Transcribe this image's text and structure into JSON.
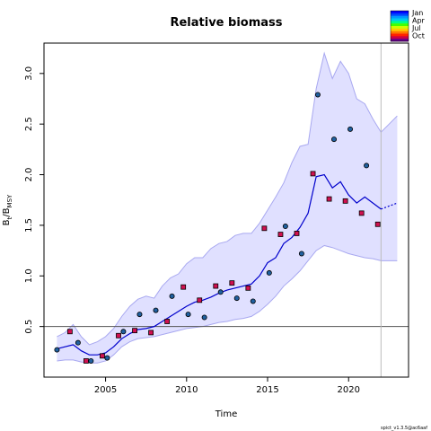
{
  "chart_data": {
    "type": "line",
    "title": "Relative biomass",
    "xlabel": "Time",
    "ylabel_main": "B",
    "ylabel_sub1": "t",
    "ylabel_sep": "/B",
    "ylabel_sub2": "MSY",
    "xlim": [
      2001.2,
      2023.7
    ],
    "ylim": [
      0.0,
      3.3
    ],
    "x_ticks": [
      {
        "value": 2005,
        "label": "2005"
      },
      {
        "value": 2010,
        "label": "2010"
      },
      {
        "value": 2015,
        "label": "2015"
      },
      {
        "value": 2020,
        "label": "2020"
      }
    ],
    "y_ticks": [
      {
        "value": 0.5,
        "label": "0.5"
      },
      {
        "value": 1.0,
        "label": "1.0"
      },
      {
        "value": 1.5,
        "label": "1.5"
      },
      {
        "value": 2.0,
        "label": "2.0"
      },
      {
        "value": 2.5,
        "label": "2.5"
      },
      {
        "value": 3.0,
        "label": "3.0"
      }
    ],
    "reference_line_y": 0.5,
    "vertical_line_x": 22,
    "vertical_line_x_value": 2022.0,
    "confidence_band": {
      "color": "#e0e0ff",
      "edge_color": "#a8a8f0",
      "x": [
        2002.0,
        2002.5,
        2003.0,
        2003.5,
        2004.0,
        2004.5,
        2005.0,
        2005.5,
        2006.0,
        2006.5,
        2007.0,
        2007.5,
        2008.0,
        2008.5,
        2009.0,
        2009.5,
        2010.0,
        2010.5,
        2011.0,
        2011.5,
        2012.0,
        2012.5,
        2013.0,
        2013.5,
        2014.0,
        2014.5,
        2015.0,
        2015.5,
        2016.0,
        2016.5,
        2017.0,
        2017.5,
        2018.0,
        2018.5,
        2019.0,
        2019.5,
        2020.0,
        2020.5,
        2021.0,
        2021.5,
        2022.0,
        2022.5,
        2023.0
      ],
      "upper": [
        0.4,
        0.44,
        0.52,
        0.4,
        0.32,
        0.35,
        0.4,
        0.48,
        0.6,
        0.7,
        0.77,
        0.8,
        0.78,
        0.9,
        0.98,
        1.02,
        1.12,
        1.18,
        1.18,
        1.27,
        1.32,
        1.34,
        1.4,
        1.42,
        1.42,
        1.52,
        1.65,
        1.78,
        1.92,
        2.12,
        2.28,
        2.3,
        2.85,
        3.2,
        2.95,
        3.12,
        3.0,
        2.75,
        2.7,
        2.55,
        2.42,
        2.5,
        2.58
      ],
      "lower": [
        0.16,
        0.17,
        0.17,
        0.15,
        0.14,
        0.14,
        0.16,
        0.22,
        0.3,
        0.35,
        0.38,
        0.39,
        0.4,
        0.42,
        0.44,
        0.46,
        0.48,
        0.49,
        0.5,
        0.52,
        0.54,
        0.55,
        0.57,
        0.58,
        0.6,
        0.65,
        0.72,
        0.8,
        0.9,
        0.97,
        1.05,
        1.15,
        1.25,
        1.3,
        1.28,
        1.25,
        1.22,
        1.2,
        1.18,
        1.17,
        1.15,
        1.15,
        1.15
      ]
    },
    "estimate_line": {
      "color": "#0000cc",
      "x": [
        2002.0,
        2002.5,
        2003.0,
        2003.5,
        2004.0,
        2004.5,
        2005.0,
        2005.5,
        2006.0,
        2006.5,
        2007.0,
        2007.5,
        2008.0,
        2008.5,
        2009.0,
        2009.5,
        2010.0,
        2010.5,
        2011.0,
        2011.5,
        2012.0,
        2012.5,
        2013.0,
        2013.5,
        2014.0,
        2014.5,
        2015.0,
        2015.5,
        2016.0,
        2016.5,
        2017.0,
        2017.5,
        2018.0,
        2018.5,
        2019.0,
        2019.5,
        2020.0,
        2020.5,
        2021.0,
        2021.5,
        2022.0
      ],
      "y": [
        0.28,
        0.3,
        0.32,
        0.26,
        0.22,
        0.22,
        0.24,
        0.3,
        0.38,
        0.43,
        0.47,
        0.48,
        0.5,
        0.55,
        0.6,
        0.65,
        0.7,
        0.74,
        0.76,
        0.79,
        0.83,
        0.86,
        0.88,
        0.9,
        0.92,
        1.0,
        1.13,
        1.18,
        1.32,
        1.38,
        1.48,
        1.62,
        1.98,
        2.0,
        1.87,
        1.93,
        1.8,
        1.72,
        1.78,
        1.72,
        1.66
      ]
    },
    "forecast_line": {
      "style": "dotted",
      "x": [
        2022.0,
        2022.5,
        2023.0
      ],
      "y": [
        1.66,
        1.69,
        1.72
      ]
    },
    "observations": [
      {
        "x": 2002.0,
        "y": 0.27,
        "marker": "circle",
        "color": "#2060a0"
      },
      {
        "x": 2002.8,
        "y": 0.45,
        "marker": "square",
        "color": "#d01050"
      },
      {
        "x": 2003.3,
        "y": 0.34,
        "marker": "circle",
        "color": "#2060a0"
      },
      {
        "x": 2003.8,
        "y": 0.16,
        "marker": "square",
        "color": "#d01050"
      },
      {
        "x": 2004.1,
        "y": 0.16,
        "marker": "circle",
        "color": "#2060a0"
      },
      {
        "x": 2004.8,
        "y": 0.21,
        "marker": "square",
        "color": "#d01050"
      },
      {
        "x": 2005.1,
        "y": 0.19,
        "marker": "circle",
        "color": "#2060a0"
      },
      {
        "x": 2005.8,
        "y": 0.41,
        "marker": "square",
        "color": "#d01050"
      },
      {
        "x": 2006.1,
        "y": 0.45,
        "marker": "circle",
        "color": "#2060a0"
      },
      {
        "x": 2006.8,
        "y": 0.46,
        "marker": "square",
        "color": "#d01050"
      },
      {
        "x": 2007.1,
        "y": 0.62,
        "marker": "circle",
        "color": "#2060a0"
      },
      {
        "x": 2007.8,
        "y": 0.44,
        "marker": "square",
        "color": "#d01050"
      },
      {
        "x": 2008.1,
        "y": 0.66,
        "marker": "circle",
        "color": "#2060a0"
      },
      {
        "x": 2008.8,
        "y": 0.55,
        "marker": "square",
        "color": "#d01050"
      },
      {
        "x": 2009.1,
        "y": 0.8,
        "marker": "circle",
        "color": "#2060a0"
      },
      {
        "x": 2009.8,
        "y": 0.89,
        "marker": "square",
        "color": "#d01050"
      },
      {
        "x": 2010.1,
        "y": 0.62,
        "marker": "circle",
        "color": "#2060a0"
      },
      {
        "x": 2010.8,
        "y": 0.76,
        "marker": "square",
        "color": "#d01050"
      },
      {
        "x": 2011.1,
        "y": 0.59,
        "marker": "circle",
        "color": "#2060a0"
      },
      {
        "x": 2011.8,
        "y": 0.9,
        "marker": "square",
        "color": "#d01050"
      },
      {
        "x": 2012.1,
        "y": 0.84,
        "marker": "circle",
        "color": "#2060a0"
      },
      {
        "x": 2012.8,
        "y": 0.93,
        "marker": "square",
        "color": "#d01050"
      },
      {
        "x": 2013.1,
        "y": 0.78,
        "marker": "circle",
        "color": "#2060a0"
      },
      {
        "x": 2013.8,
        "y": 0.88,
        "marker": "square",
        "color": "#d01050"
      },
      {
        "x": 2014.1,
        "y": 0.75,
        "marker": "circle",
        "color": "#2060a0"
      },
      {
        "x": 2014.8,
        "y": 1.47,
        "marker": "square",
        "color": "#d01050"
      },
      {
        "x": 2015.1,
        "y": 1.03,
        "marker": "circle",
        "color": "#2060a0"
      },
      {
        "x": 2015.8,
        "y": 1.41,
        "marker": "square",
        "color": "#d01050"
      },
      {
        "x": 2016.1,
        "y": 1.49,
        "marker": "circle",
        "color": "#2060a0"
      },
      {
        "x": 2016.8,
        "y": 1.42,
        "marker": "square",
        "color": "#d01050"
      },
      {
        "x": 2017.1,
        "y": 1.22,
        "marker": "circle",
        "color": "#2060a0"
      },
      {
        "x": 2017.8,
        "y": 2.01,
        "marker": "square",
        "color": "#d01050"
      },
      {
        "x": 2018.1,
        "y": 2.79,
        "marker": "circle",
        "color": "#2060a0"
      },
      {
        "x": 2018.8,
        "y": 1.76,
        "marker": "square",
        "color": "#d01050"
      },
      {
        "x": 2019.1,
        "y": 2.35,
        "marker": "circle",
        "color": "#2060a0"
      },
      {
        "x": 2019.8,
        "y": 1.74,
        "marker": "square",
        "color": "#d01050"
      },
      {
        "x": 2020.1,
        "y": 2.45,
        "marker": "circle",
        "color": "#2060a0"
      },
      {
        "x": 2020.8,
        "y": 1.62,
        "marker": "square",
        "color": "#d01050"
      },
      {
        "x": 2021.1,
        "y": 2.09,
        "marker": "circle",
        "color": "#2060a0"
      },
      {
        "x": 2021.8,
        "y": 1.51,
        "marker": "square",
        "color": "#d01050"
      }
    ],
    "legend": {
      "placement": "top-right",
      "labels": [
        "Jan",
        "Apr",
        "Jul",
        "Oct"
      ],
      "colors": [
        "#0000ff",
        "#0044ff",
        "#0099ff",
        "#00ccee",
        "#00ff88",
        "#44ff00",
        "#ccff00",
        "#ffcc00",
        "#ff7700",
        "#ff2200",
        "#cc0044",
        "#660088"
      ]
    },
    "footer_text": "spict_v1.3.5@ac6aaf"
  }
}
